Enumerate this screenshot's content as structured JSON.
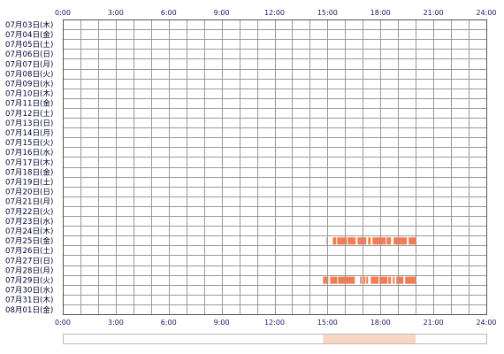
{
  "chart_data": {
    "type": "heatmap",
    "x_unit": "hour of day",
    "xlim": [
      0,
      24
    ],
    "tick_hours": [
      0,
      3,
      6,
      9,
      12,
      15,
      18,
      21,
      24
    ],
    "tick_labels": [
      "0:00",
      "3:00",
      "6:00",
      "9:00",
      "12:00",
      "15:00",
      "18:00",
      "21:00",
      "24:00"
    ],
    "days": [
      "07月03日(木)",
      "07月04日(金)",
      "07月05日(土)",
      "07月06日(日)",
      "07月07日(月)",
      "07月08日(火)",
      "07月09日(水)",
      "07月10日(木)",
      "07月11日(金)",
      "07月12日(土)",
      "07月13日(日)",
      "07月14日(月)",
      "07月15日(火)",
      "07月16日(水)",
      "07月17日(木)",
      "07月18日(金)",
      "07月19日(土)",
      "07月20日(日)",
      "07月21日(月)",
      "07月22日(火)",
      "07月23日(水)",
      "07月24日(木)",
      "07月25日(金)",
      "07月26日(土)",
      "07月27日(日)",
      "07月28日(月)",
      "07月29日(火)",
      "07月30日(水)",
      "07月31日(木)",
      "08月01日(金)"
    ],
    "activity": [
      {
        "day": "07月25日(金)",
        "intervals": [
          [
            14.95,
            15.0
          ],
          [
            15.3,
            15.5
          ],
          [
            15.55,
            16.1
          ],
          [
            16.15,
            16.6
          ],
          [
            16.7,
            17.2
          ],
          [
            17.3,
            17.45
          ],
          [
            17.55,
            18.3
          ],
          [
            18.35,
            18.6
          ],
          [
            18.75,
            19.5
          ],
          [
            19.6,
            20.0
          ]
        ]
      },
      {
        "day": "07月29日(火)",
        "intervals": [
          [
            14.75,
            15.05
          ],
          [
            15.15,
            15.55
          ],
          [
            15.6,
            16.55
          ],
          [
            16.85,
            16.95
          ],
          [
            17.05,
            17.15
          ],
          [
            17.2,
            17.3
          ],
          [
            17.45,
            17.9
          ],
          [
            17.95,
            18.4
          ],
          [
            18.45,
            18.6
          ],
          [
            18.7,
            18.8
          ],
          [
            18.9,
            19.3
          ],
          [
            19.4,
            20.0
          ]
        ]
      }
    ],
    "summary_intervals": [
      [
        14.75,
        20.0
      ]
    ],
    "colors": {
      "activity": "#f47c52",
      "summary": "#fbd5c3",
      "grid": "#999999",
      "frame": "#555555"
    }
  }
}
